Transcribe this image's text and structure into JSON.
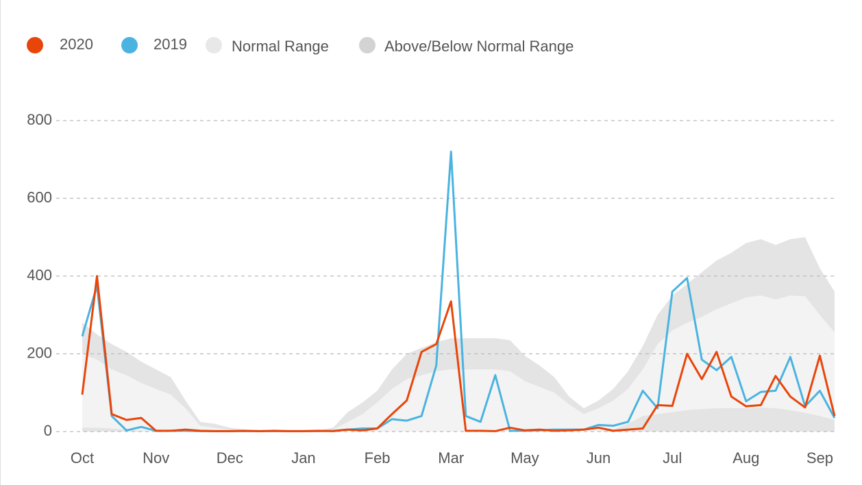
{
  "chart_data": {
    "type": "line",
    "x": [
      0,
      1,
      2,
      3,
      4,
      5,
      6,
      7,
      8,
      9,
      10,
      11,
      12,
      13,
      14,
      15,
      16,
      17,
      18,
      19,
      20,
      21,
      22,
      23,
      24,
      25,
      26,
      27,
      28,
      29,
      30,
      31,
      32,
      33,
      34,
      35,
      36,
      37,
      38,
      39,
      40,
      41,
      42,
      43,
      44,
      45,
      46,
      47,
      48,
      49,
      50,
      51
    ],
    "xlim": [
      0,
      51
    ],
    "xticks": [
      {
        "value": 0,
        "label": "Oct"
      },
      {
        "value": 5,
        "label": "Nov"
      },
      {
        "value": 10,
        "label": "Dec"
      },
      {
        "value": 15,
        "label": "Jan"
      },
      {
        "value": 20,
        "label": "Feb"
      },
      {
        "value": 25,
        "label": "Mar"
      },
      {
        "value": 30,
        "label": "May"
      },
      {
        "value": 35,
        "label": "Jun"
      },
      {
        "value": 40,
        "label": "Jul"
      },
      {
        "value": 45,
        "label": "Aug"
      },
      {
        "value": 50,
        "label": "Sep"
      }
    ],
    "ylim": [
      0,
      800
    ],
    "yticks": [
      0,
      200,
      400,
      600,
      800
    ],
    "grid": true,
    "bands": [
      {
        "name": "Above/Below Normal Range",
        "color": "#e4e4e4",
        "high": [
          280,
          250,
          225,
          205,
          180,
          160,
          140,
          80,
          25,
          20,
          10,
          5,
          3,
          2,
          2,
          2,
          3,
          10,
          50,
          75,
          105,
          160,
          200,
          215,
          230,
          240,
          240,
          240,
          240,
          235,
          195,
          170,
          140,
          90,
          60,
          80,
          110,
          155,
          220,
          300,
          350,
          380,
          410,
          440,
          460,
          485,
          495,
          480,
          495,
          500,
          420,
          360
        ],
        "low": [
          0,
          0,
          0,
          0,
          0,
          0,
          0,
          0,
          0,
          0,
          0,
          0,
          0,
          0,
          0,
          0,
          0,
          0,
          0,
          0,
          0,
          0,
          0,
          0,
          0,
          0,
          0,
          0,
          0,
          0,
          0,
          0,
          0,
          0,
          0,
          0,
          0,
          0,
          0,
          0,
          0,
          0,
          0,
          0,
          0,
          0,
          0,
          0,
          0,
          0,
          0,
          0
        ]
      },
      {
        "name": "Normal Range",
        "color": "#f3f3f3",
        "high": [
          200,
          185,
          160,
          145,
          125,
          110,
          95,
          60,
          15,
          10,
          5,
          3,
          2,
          1,
          1,
          1,
          2,
          5,
          25,
          45,
          75,
          110,
          135,
          145,
          155,
          160,
          160,
          160,
          160,
          155,
          130,
          115,
          100,
          70,
          45,
          60,
          80,
          110,
          160,
          225,
          260,
          280,
          295,
          315,
          330,
          345,
          350,
          340,
          350,
          348,
          300,
          255
        ],
        "low": [
          10,
          10,
          8,
          5,
          2,
          0,
          0,
          0,
          0,
          0,
          0,
          0,
          0,
          0,
          0,
          0,
          0,
          0,
          0,
          0,
          0,
          0,
          0,
          0,
          0,
          0,
          0,
          0,
          0,
          0,
          0,
          0,
          0,
          0,
          0,
          0,
          5,
          20,
          40,
          45,
          50,
          55,
          58,
          60,
          60,
          60,
          62,
          60,
          55,
          48,
          40,
          30
        ]
      }
    ],
    "series": [
      {
        "name": "2020",
        "color": "#e8450a",
        "values": [
          95,
          400,
          45,
          30,
          35,
          2,
          2,
          5,
          2,
          1,
          1,
          2,
          1,
          2,
          1,
          1,
          2,
          1,
          5,
          3,
          8,
          45,
          80,
          205,
          225,
          335,
          2,
          2,
          1,
          10,
          3,
          5,
          2,
          3,
          5,
          10,
          2,
          5,
          8,
          68,
          66,
          200,
          135,
          205,
          90,
          65,
          68,
          143,
          90,
          62,
          195,
          40
        ]
      },
      {
        "name": "2019",
        "color": "#4ab3e0",
        "values": [
          245,
          375,
          40,
          3,
          12,
          2,
          2,
          2,
          1,
          1,
          1,
          1,
          1,
          1,
          1,
          1,
          1,
          2,
          5,
          8,
          8,
          32,
          28,
          40,
          170,
          720,
          40,
          25,
          145,
          2,
          2,
          3,
          5,
          5,
          5,
          17,
          15,
          25,
          105,
          60,
          360,
          395,
          185,
          158,
          192,
          78,
          102,
          105,
          192,
          65,
          105,
          35
        ]
      }
    ]
  }
}
